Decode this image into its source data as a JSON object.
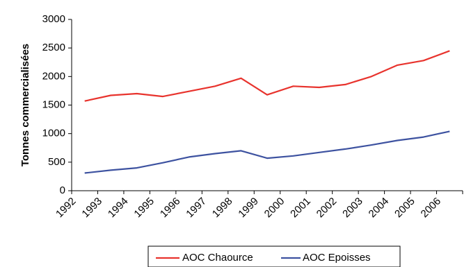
{
  "chart_data": {
    "type": "line",
    "title": "",
    "xlabel": "",
    "ylabel": "Tonnes commercialisées",
    "ylim": [
      0,
      3000
    ],
    "yticks": [
      0,
      500,
      1000,
      1500,
      2000,
      2500,
      3000
    ],
    "categories": [
      "1992",
      "1993",
      "1994",
      "1995",
      "1996",
      "1997",
      "1998",
      "1999",
      "2000",
      "2001",
      "2002",
      "2003",
      "2004",
      "2005",
      "2006"
    ],
    "grid": false,
    "legend_position": "bottom",
    "series": [
      {
        "name": "AOC Chaource",
        "color": "#e8332d",
        "values": [
          1570,
          1670,
          1700,
          1650,
          1740,
          1830,
          1970,
          1680,
          1830,
          1810,
          1860,
          2000,
          2200,
          2280,
          2450
        ]
      },
      {
        "name": "AOC Epoisses",
        "color": "#3d52a0",
        "values": [
          310,
          360,
          400,
          490,
          590,
          650,
          700,
          570,
          610,
          670,
          730,
          800,
          880,
          940,
          1040
        ]
      }
    ]
  }
}
